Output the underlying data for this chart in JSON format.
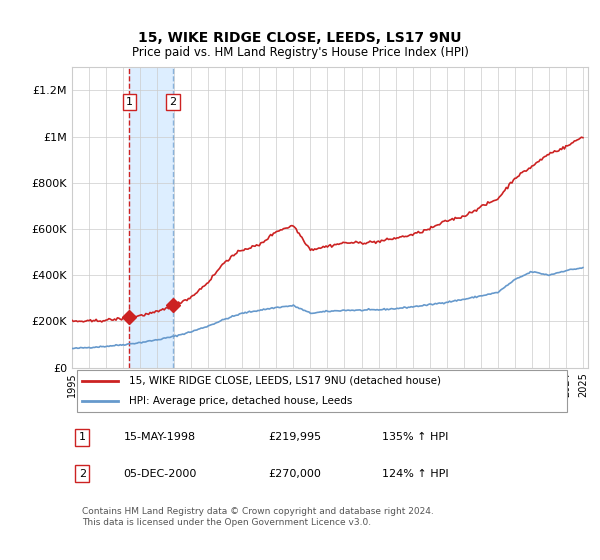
{
  "title": "15, WIKE RIDGE CLOSE, LEEDS, LS17 9NU",
  "subtitle": "Price paid vs. HM Land Registry's House Price Index (HPI)",
  "xlabel": "",
  "ylabel": "",
  "ylim": [
    0,
    1300000
  ],
  "yticks": [
    0,
    200000,
    400000,
    600000,
    800000,
    1000000,
    1200000
  ],
  "ytick_labels": [
    "£0",
    "£200K",
    "£400K",
    "£600K",
    "£800K",
    "£1M",
    "£1.2M"
  ],
  "x_start_year": 1995,
  "x_end_year": 2025,
  "sale1_date": 1998.37,
  "sale1_price": 219995,
  "sale1_label": "1",
  "sale2_date": 2000.92,
  "sale2_price": 270000,
  "sale2_label": "2",
  "hpi_line_color": "#6699cc",
  "price_line_color": "#cc2222",
  "marker_color": "#cc2222",
  "shade_color": "#ddeeff",
  "dashed_line1_color": "#cc2222",
  "dashed_line2_color": "#6699cc",
  "grid_color": "#cccccc",
  "bg_color": "#ffffff",
  "legend_label1": "15, WIKE RIDGE CLOSE, LEEDS, LS17 9NU (detached house)",
  "legend_label2": "HPI: Average price, detached house, Leeds",
  "footer": "Contains HM Land Registry data © Crown copyright and database right 2024.\nThis data is licensed under the Open Government Licence v3.0.",
  "table_rows": [
    {
      "num": "1",
      "date": "15-MAY-1998",
      "price": "£219,995",
      "hpi": "135% ↑ HPI"
    },
    {
      "num": "2",
      "date": "05-DEC-2000",
      "price": "£270,000",
      "hpi": "124% ↑ HPI"
    }
  ]
}
